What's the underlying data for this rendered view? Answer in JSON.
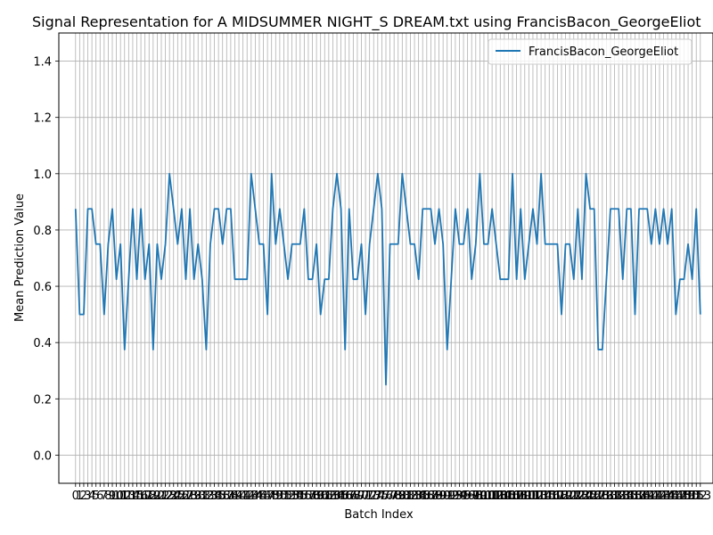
{
  "chart_data": {
    "type": "line",
    "title": "Signal Representation for A MIDSUMMER NIGHT_S DREAM.txt using FrancisBacon_GeorgeEliot",
    "xlabel": "Batch Index",
    "ylabel": "Mean Prediction Value",
    "ylim": [
      -0.1,
      1.5
    ],
    "xlim": [
      -4.1,
      156.1
    ],
    "yticks": [
      0.0,
      0.2,
      0.4,
      0.6,
      0.8,
      1.0,
      1.2,
      1.4
    ],
    "ytick_labels": [
      "0.0",
      "0.2",
      "0.4",
      "0.6",
      "0.8",
      "1.0",
      "1.2",
      "1.4"
    ],
    "grid": true,
    "legend": "top-right",
    "line_color": "#1f77b4",
    "series": [
      {
        "name": "FrancisBacon_GeorgeEliot",
        "values": [
          0.875,
          0.5,
          0.5,
          0.875,
          0.875,
          0.75,
          0.75,
          0.5,
          0.75,
          0.875,
          0.625,
          0.75,
          0.375,
          0.625,
          0.875,
          0.625,
          0.875,
          0.625,
          0.75,
          0.375,
          0.75,
          0.625,
          0.75,
          1.0,
          0.875,
          0.75,
          0.875,
          0.625,
          0.875,
          0.625,
          0.75,
          0.625,
          0.375,
          0.75,
          0.875,
          0.875,
          0.75,
          0.875,
          0.875,
          0.625,
          0.625,
          0.625,
          0.625,
          1.0,
          0.875,
          0.75,
          0.75,
          0.5,
          1.0,
          0.75,
          0.875,
          0.75,
          0.625,
          0.75,
          0.75,
          0.75,
          0.875,
          0.625,
          0.625,
          0.75,
          0.5,
          0.625,
          0.625,
          0.875,
          1.0,
          0.875,
          0.375,
          0.875,
          0.625,
          0.625,
          0.75,
          0.5,
          0.75,
          0.875,
          1.0,
          0.875,
          0.25,
          0.75,
          0.75,
          0.75,
          1.0,
          0.875,
          0.75,
          0.75,
          0.625,
          0.875,
          0.875,
          0.875,
          0.75,
          0.875,
          0.75,
          0.375,
          0.625,
          0.875,
          0.75,
          0.75,
          0.875,
          0.625,
          0.75,
          1.0,
          0.75,
          0.75,
          0.875,
          0.75,
          0.625,
          0.625,
          0.625,
          1.0,
          0.625,
          0.875,
          0.625,
          0.75,
          0.875,
          0.75,
          1.0,
          0.75,
          0.75,
          0.75,
          0.75,
          0.5,
          0.75,
          0.75,
          0.625,
          0.875,
          0.625,
          1.0,
          0.875,
          0.875,
          0.375,
          0.375,
          0.625,
          0.875,
          0.875,
          0.875,
          0.625,
          0.875,
          0.875,
          0.5,
          0.875,
          0.875,
          0.875,
          0.75,
          0.875,
          0.75,
          0.875,
          0.75,
          0.875,
          0.5,
          0.625,
          0.625,
          0.75,
          0.625,
          0.875,
          0.5
        ]
      }
    ]
  }
}
